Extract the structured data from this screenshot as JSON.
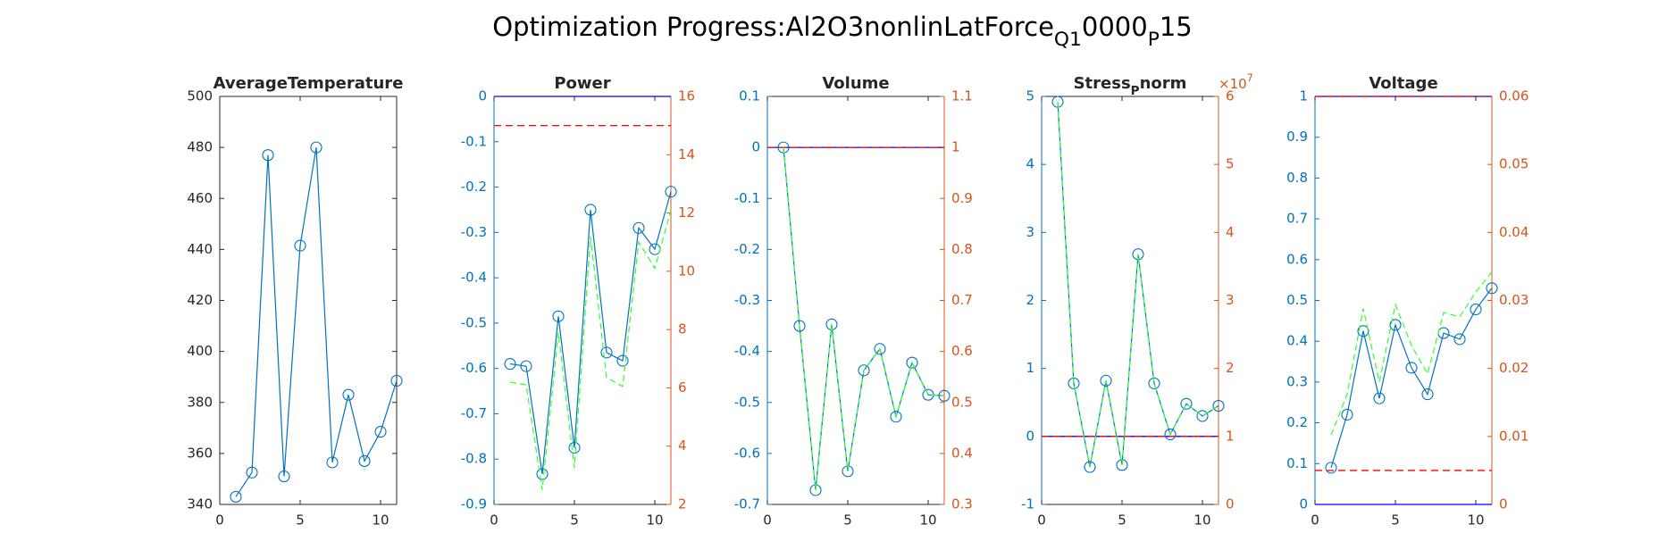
{
  "suptitle": [
    {
      "text": "Optimization Progress:Al2O3nonlinLatForce"
    },
    {
      "text": "Q1",
      "sub": true
    },
    {
      "text": "0000"
    },
    {
      "text": "P",
      "sub": true
    },
    {
      "text": "15"
    }
  ],
  "chart_data": [
    {
      "type": "line",
      "title": [
        {
          "text": "AverageTemperature"
        }
      ],
      "x": [
        1,
        2,
        3,
        4,
        5,
        6,
        7,
        8,
        9,
        10,
        11
      ],
      "xlim": [
        0,
        11
      ],
      "xticks": [
        0,
        5,
        10
      ],
      "ylim": [
        340,
        500
      ],
      "yticks": [
        340,
        360,
        380,
        400,
        420,
        440,
        460,
        480,
        500
      ],
      "series": [
        {
          "color": "#0072bd",
          "style": "solid",
          "marker": "circle",
          "axis": "y",
          "values": [
            343,
            352.5,
            477,
            351,
            441.5,
            480,
            356.5,
            383,
            357,
            368.5,
            388.5
          ]
        }
      ],
      "reference_lines": []
    },
    {
      "type": "line",
      "title": [
        {
          "text": "Power"
        }
      ],
      "x": [
        1,
        2,
        3,
        4,
        5,
        6,
        7,
        8,
        9,
        10,
        11
      ],
      "xlim": [
        0,
        11
      ],
      "xticks": [
        0,
        5,
        10
      ],
      "ylim": [
        -0.9,
        0
      ],
      "yticks": [
        -0.9,
        -0.8,
        -0.7,
        -0.6,
        -0.5,
        -0.4,
        -0.3,
        -0.2,
        -0.1,
        0
      ],
      "y2lim": [
        2,
        16
      ],
      "y2ticks": [
        2,
        4,
        6,
        8,
        10,
        12,
        14,
        16
      ],
      "series": [
        {
          "color": "#0072bd",
          "style": "solid",
          "marker": "circle",
          "axis": "y",
          "values": [
            -0.59,
            -0.595,
            -0.833,
            -0.485,
            -0.775,
            -0.25,
            -0.565,
            -0.583,
            -0.29,
            -0.337,
            -0.21
          ]
        },
        {
          "color": "#33ff33",
          "style": "dashed",
          "axis": "y2",
          "values": [
            6.2,
            6.1,
            2.5,
            7.9,
            3.25,
            11.2,
            6.35,
            6.05,
            11.0,
            10.1,
            12.1
          ]
        }
      ],
      "reference_lines": [
        {
          "axis": "y",
          "value": 0,
          "color": "#0000ff",
          "style": "solid"
        },
        {
          "axis": "y2",
          "value": 15,
          "color": "#ff0000",
          "style": "dashed"
        }
      ]
    },
    {
      "type": "line",
      "title": [
        {
          "text": "Volume"
        }
      ],
      "x": [
        1,
        2,
        3,
        4,
        5,
        6,
        7,
        8,
        9,
        10,
        11
      ],
      "xlim": [
        0,
        11
      ],
      "xticks": [
        0,
        5,
        10
      ],
      "ylim": [
        -0.7,
        0.1
      ],
      "yticks": [
        -0.7,
        -0.6,
        -0.5,
        -0.4,
        -0.3,
        -0.2,
        -0.1,
        0,
        0.1
      ],
      "y2lim": [
        0.3,
        1.1
      ],
      "y2ticks": [
        0.3,
        0.4,
        0.5,
        0.6,
        0.7,
        0.8,
        0.9,
        1,
        1.1
      ],
      "series": [
        {
          "color": "#0072bd",
          "style": "solid",
          "marker": "circle",
          "axis": "y",
          "values": [
            0,
            -0.35,
            -0.672,
            -0.347,
            -0.635,
            -0.437,
            -0.395,
            -0.528,
            -0.422,
            -0.485,
            -0.487
          ]
        },
        {
          "color": "#33ff33",
          "style": "dashed",
          "axis": "y2",
          "values": [
            1,
            0.65,
            0.328,
            0.653,
            0.365,
            0.563,
            0.605,
            0.472,
            0.578,
            0.515,
            0.513
          ]
        }
      ],
      "reference_lines": [
        {
          "axis": "y",
          "value": 0,
          "color": "#0000ff",
          "style": "solid"
        },
        {
          "axis": "y2",
          "value": 1,
          "color": "#ff0000",
          "style": "dashed"
        }
      ]
    },
    {
      "type": "line",
      "title": [
        {
          "text": "Stress"
        },
        {
          "text": "P",
          "sub": true
        },
        {
          "text": "norm"
        }
      ],
      "x": [
        1,
        2,
        3,
        4,
        5,
        6,
        7,
        8,
        9,
        10,
        11
      ],
      "xlim": [
        0,
        11
      ],
      "xticks": [
        0,
        5,
        10
      ],
      "ylim": [
        -1,
        5
      ],
      "yticks": [
        -1,
        0,
        1,
        2,
        3,
        4,
        5
      ],
      "y2lim": [
        0,
        6
      ],
      "y2ticks": [
        0,
        1,
        2,
        3,
        4,
        5,
        6
      ],
      "y2_exponent": {
        "base": "×10",
        "power": "7"
      },
      "series": [
        {
          "color": "#0072bd",
          "style": "solid",
          "marker": "circle",
          "axis": "y",
          "values": [
            4.92,
            0.78,
            -0.45,
            0.82,
            -0.42,
            2.68,
            0.78,
            0.03,
            0.48,
            0.3,
            0.45
          ]
        },
        {
          "color": "#33ff33",
          "style": "dashed",
          "axis": "y2",
          "values": [
            5.92,
            1.78,
            0.55,
            1.82,
            0.58,
            3.68,
            1.78,
            1.03,
            1.48,
            1.3,
            1.45
          ]
        }
      ],
      "reference_lines": [
        {
          "axis": "y",
          "value": 0,
          "color": "#0000ff",
          "style": "solid"
        },
        {
          "axis": "y2",
          "value": 1,
          "color": "#ff0000",
          "style": "dashed"
        }
      ]
    },
    {
      "type": "line",
      "title": [
        {
          "text": "Voltage"
        }
      ],
      "x": [
        1,
        2,
        3,
        4,
        5,
        6,
        7,
        8,
        9,
        10,
        11
      ],
      "xlim": [
        0,
        11
      ],
      "xticks": [
        0,
        5,
        10
      ],
      "ylim": [
        0,
        1
      ],
      "yticks": [
        0,
        0.1,
        0.2,
        0.3,
        0.4,
        0.5,
        0.6,
        0.7,
        0.8,
        0.9,
        1
      ],
      "y2lim": [
        0,
        0.06
      ],
      "y2ticks": [
        0,
        0.01,
        0.02,
        0.03,
        0.04,
        0.05,
        0.06
      ],
      "series": [
        {
          "color": "#0072bd",
          "style": "solid",
          "marker": "circle",
          "axis": "y",
          "values": [
            0.09,
            0.22,
            0.425,
            0.26,
            0.44,
            0.335,
            0.27,
            0.42,
            0.405,
            0.478,
            0.53
          ]
        },
        {
          "color": "#33ff33",
          "style": "dashed",
          "axis": "y2",
          "values": [
            0.0102,
            0.0162,
            0.0288,
            0.018,
            0.0294,
            0.0234,
            0.0192,
            0.0282,
            0.0276,
            0.0312,
            0.0342
          ]
        }
      ],
      "reference_lines": [
        {
          "axis": "y",
          "value": 0,
          "color": "#0000ff",
          "style": "solid"
        },
        {
          "axis": "y",
          "value": 1,
          "color": "#0000ff",
          "style": "solid"
        },
        {
          "axis": "y2",
          "value": 0.06,
          "color": "#ff0000",
          "style": "dashed"
        },
        {
          "axis": "y2",
          "value": 0.005,
          "color": "#ff0000",
          "style": "dashed"
        }
      ]
    }
  ]
}
